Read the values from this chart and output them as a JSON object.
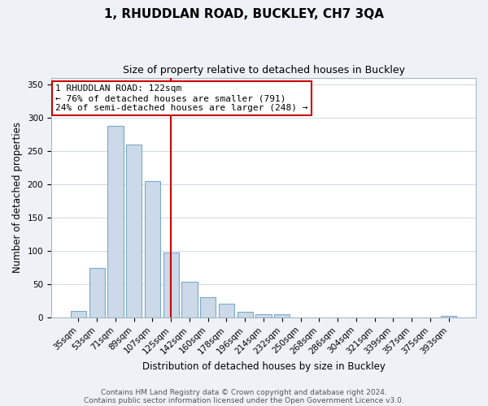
{
  "title": "1, RHUDDLAN ROAD, BUCKLEY, CH7 3QA",
  "subtitle": "Size of property relative to detached houses in Buckley",
  "xlabel": "Distribution of detached houses by size in Buckley",
  "ylabel": "Number of detached properties",
  "bar_color": "#ccd9e8",
  "bar_edge_color": "#7aaac8",
  "categories": [
    "35sqm",
    "53sqm",
    "71sqm",
    "89sqm",
    "107sqm",
    "125sqm",
    "142sqm",
    "160sqm",
    "178sqm",
    "196sqm",
    "214sqm",
    "232sqm",
    "250sqm",
    "268sqm",
    "286sqm",
    "304sqm",
    "321sqm",
    "339sqm",
    "357sqm",
    "375sqm",
    "393sqm"
  ],
  "values": [
    10,
    74,
    287,
    260,
    205,
    97,
    54,
    31,
    21,
    9,
    5,
    5,
    0,
    0,
    0,
    0,
    0,
    0,
    0,
    0,
    2
  ],
  "vline_index": 5,
  "vline_color": "#cc0000",
  "annotation_title": "1 RHUDDLAN ROAD: 122sqm",
  "annotation_line1": "← 76% of detached houses are smaller (791)",
  "annotation_line2": "24% of semi-detached houses are larger (248) →",
  "annotation_box_color": "#ffffff",
  "annotation_box_edge": "#cc0000",
  "ylim": [
    0,
    360
  ],
  "yticks": [
    0,
    50,
    100,
    150,
    200,
    250,
    300,
    350
  ],
  "footnote1": "Contains HM Land Registry data © Crown copyright and database right 2024.",
  "footnote2": "Contains public sector information licensed under the Open Government Licence v3.0.",
  "background_color": "#eef2f7",
  "plot_bg_color": "#ffffff",
  "title_fontsize": 11,
  "subtitle_fontsize": 9,
  "axis_label_fontsize": 8.5,
  "tick_fontsize": 7.5,
  "footnote_fontsize": 6.5
}
